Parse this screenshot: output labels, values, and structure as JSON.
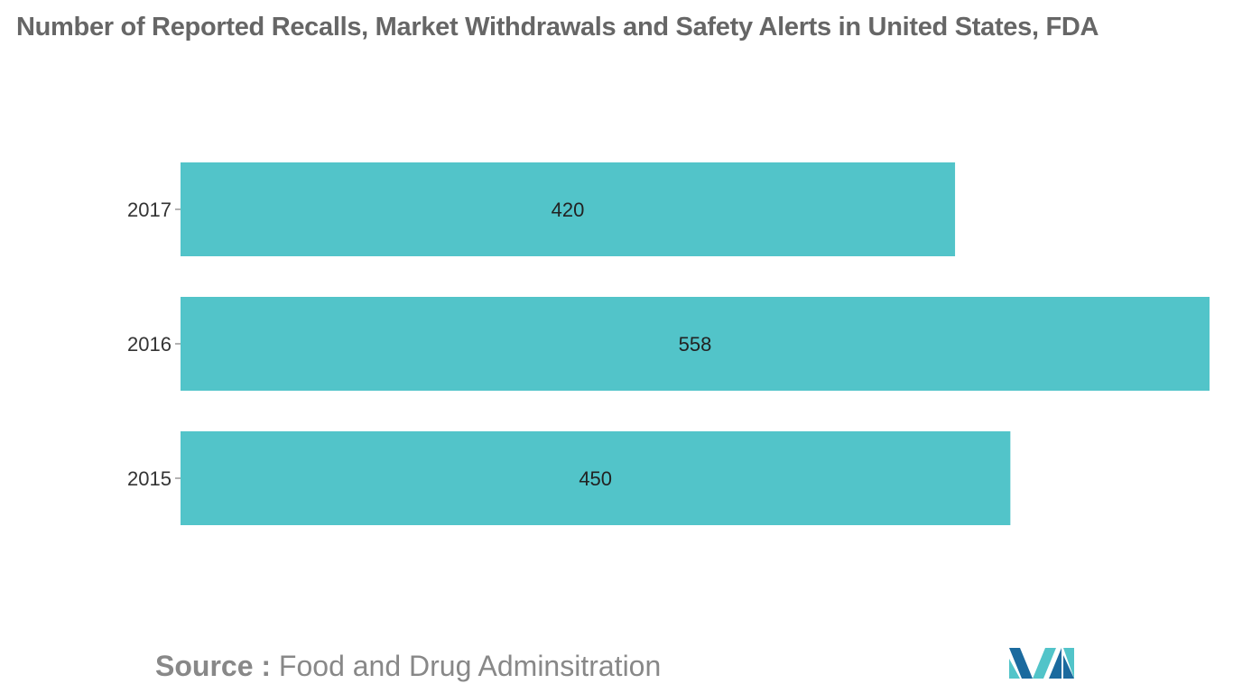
{
  "chart_data": {
    "type": "bar",
    "orientation": "horizontal",
    "title": "Number of Reported Recalls, Market Withdrawals and Safety Alerts in United States, FDA",
    "categories": [
      "2017",
      "2016",
      "2015"
    ],
    "values": [
      420,
      558,
      450
    ],
    "xlim": [
      0,
      558
    ],
    "grid": false,
    "bar_color": "#52c4c9",
    "data_labels": true
  },
  "source": {
    "label": "Source :",
    "text": "Food and Drug Adminsitration"
  },
  "logo": {
    "icon": "mordor-logo-icon",
    "colors": [
      "#1b6a9e",
      "#52c4c9"
    ]
  }
}
